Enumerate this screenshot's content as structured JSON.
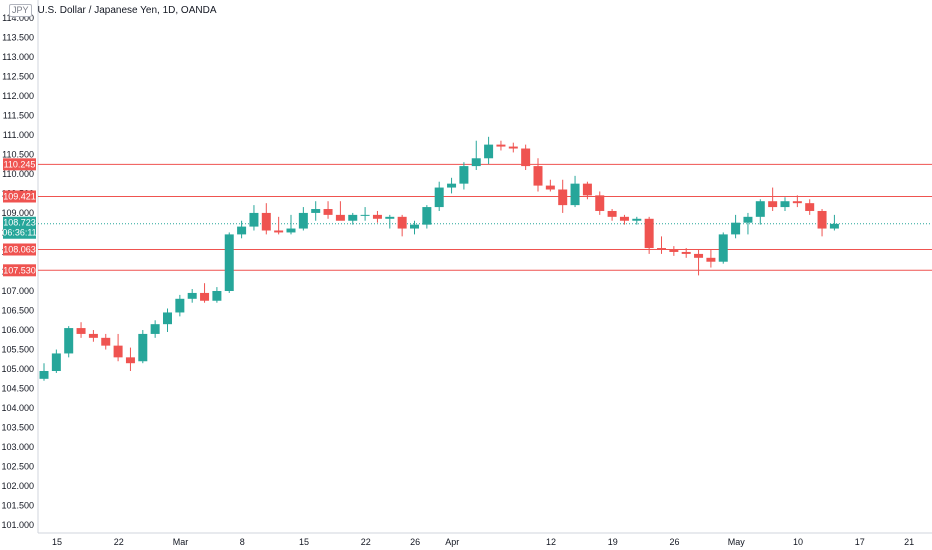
{
  "header": {
    "currency": "JPY",
    "title": "U.S. Dollar / Japanese Yen, 1D, OANDA"
  },
  "colors": {
    "up": "#26a69a",
    "down": "#ef5350",
    "level": "#ef5350",
    "current": "#26a69a",
    "axis_line": "#d1d4dc",
    "text": "#131722"
  },
  "chart_data": {
    "type": "candlestick",
    "title": "U.S. Dollar / Japanese Yen, 1D, OANDA",
    "ylim": [
      100.8,
      114.25
    ],
    "y_ticks": [
      "101.000",
      "101.500",
      "102.000",
      "102.500",
      "103.000",
      "103.500",
      "104.000",
      "104.500",
      "105.000",
      "105.500",
      "106.000",
      "106.500",
      "107.000",
      "107.500",
      "108.000",
      "108.500",
      "109.000",
      "109.500",
      "110.000",
      "110.500",
      "111.000",
      "111.500",
      "112.000",
      "112.500",
      "113.000",
      "113.500",
      "114.000"
    ],
    "x_ticks": [
      {
        "label": "15",
        "slot": 0
      },
      {
        "label": "22",
        "slot": 5
      },
      {
        "label": "Mar",
        "slot": 10
      },
      {
        "label": "8",
        "slot": 15
      },
      {
        "label": "15",
        "slot": 20
      },
      {
        "label": "22",
        "slot": 25
      },
      {
        "label": "26",
        "slot": 29
      },
      {
        "label": "Apr",
        "slot": 32
      },
      {
        "label": "12",
        "slot": 40
      },
      {
        "label": "19",
        "slot": 45
      },
      {
        "label": "26",
        "slot": 50
      },
      {
        "label": "May",
        "slot": 55
      },
      {
        "label": "10",
        "slot": 60
      },
      {
        "label": "17",
        "slot": 65
      },
      {
        "label": "21",
        "slot": 69
      }
    ],
    "candles": [
      {
        "o": 104.75,
        "h": 105.15,
        "l": 104.7,
        "c": 104.95
      },
      {
        "o": 104.95,
        "h": 105.5,
        "l": 104.9,
        "c": 105.4
      },
      {
        "o": 105.4,
        "h": 106.1,
        "l": 105.3,
        "c": 106.05
      },
      {
        "o": 106.05,
        "h": 106.2,
        "l": 105.8,
        "c": 105.9
      },
      {
        "o": 105.9,
        "h": 106.0,
        "l": 105.7,
        "c": 105.8
      },
      {
        "o": 105.8,
        "h": 105.9,
        "l": 105.5,
        "c": 105.6
      },
      {
        "o": 105.6,
        "h": 105.9,
        "l": 105.2,
        "c": 105.3
      },
      {
        "o": 105.3,
        "h": 105.55,
        "l": 104.95,
        "c": 105.15
      },
      {
        "o": 105.2,
        "h": 106.0,
        "l": 105.15,
        "c": 105.9
      },
      {
        "o": 105.9,
        "h": 106.25,
        "l": 105.8,
        "c": 106.15
      },
      {
        "o": 106.15,
        "h": 106.55,
        "l": 105.95,
        "c": 106.45
      },
      {
        "o": 106.45,
        "h": 106.9,
        "l": 106.35,
        "c": 106.8
      },
      {
        "o": 106.8,
        "h": 107.05,
        "l": 106.7,
        "c": 106.95
      },
      {
        "o": 106.95,
        "h": 107.2,
        "l": 106.7,
        "c": 106.75
      },
      {
        "o": 106.75,
        "h": 107.1,
        "l": 106.7,
        "c": 107.0
      },
      {
        "o": 107.0,
        "h": 108.5,
        "l": 106.95,
        "c": 108.45
      },
      {
        "o": 108.45,
        "h": 108.8,
        "l": 108.35,
        "c": 108.65
      },
      {
        "o": 108.65,
        "h": 109.2,
        "l": 108.55,
        "c": 109.0
      },
      {
        "o": 109.0,
        "h": 109.25,
        "l": 108.45,
        "c": 108.55
      },
      {
        "o": 108.55,
        "h": 108.9,
        "l": 108.45,
        "c": 108.5
      },
      {
        "o": 108.5,
        "h": 108.95,
        "l": 108.45,
        "c": 108.6
      },
      {
        "o": 108.6,
        "h": 109.15,
        "l": 108.55,
        "c": 109.0
      },
      {
        "o": 109.0,
        "h": 109.3,
        "l": 108.8,
        "c": 109.1
      },
      {
        "o": 109.1,
        "h": 109.3,
        "l": 108.85,
        "c": 108.95
      },
      {
        "o": 108.95,
        "h": 109.3,
        "l": 108.85,
        "c": 108.8
      },
      {
        "o": 108.8,
        "h": 109.0,
        "l": 108.7,
        "c": 108.95
      },
      {
        "o": 108.95,
        "h": 109.15,
        "l": 108.8,
        "c": 108.95
      },
      {
        "o": 108.95,
        "h": 109.05,
        "l": 108.75,
        "c": 108.85
      },
      {
        "o": 108.85,
        "h": 108.95,
        "l": 108.6,
        "c": 108.9
      },
      {
        "o": 108.9,
        "h": 108.95,
        "l": 108.4,
        "c": 108.6
      },
      {
        "o": 108.6,
        "h": 108.8,
        "l": 108.45,
        "c": 108.7
      },
      {
        "o": 108.7,
        "h": 109.2,
        "l": 108.6,
        "c": 109.15
      },
      {
        "o": 109.15,
        "h": 109.8,
        "l": 109.05,
        "c": 109.65
      },
      {
        "o": 109.65,
        "h": 109.9,
        "l": 109.5,
        "c": 109.75
      },
      {
        "o": 109.75,
        "h": 110.3,
        "l": 109.6,
        "c": 110.2
      },
      {
        "o": 110.2,
        "h": 110.85,
        "l": 110.1,
        "c": 110.4
      },
      {
        "o": 110.4,
        "h": 110.95,
        "l": 110.25,
        "c": 110.75
      },
      {
        "o": 110.75,
        "h": 110.85,
        "l": 110.6,
        "c": 110.7
      },
      {
        "o": 110.7,
        "h": 110.8,
        "l": 110.55,
        "c": 110.65
      },
      {
        "o": 110.65,
        "h": 110.75,
        "l": 110.1,
        "c": 110.2
      },
      {
        "o": 110.2,
        "h": 110.4,
        "l": 109.55,
        "c": 109.7
      },
      {
        "o": 109.7,
        "h": 109.85,
        "l": 109.55,
        "c": 109.6
      },
      {
        "o": 109.6,
        "h": 109.85,
        "l": 109.0,
        "c": 109.2
      },
      {
        "o": 109.2,
        "h": 109.95,
        "l": 109.15,
        "c": 109.75
      },
      {
        "o": 109.75,
        "h": 109.8,
        "l": 109.35,
        "c": 109.45
      },
      {
        "o": 109.45,
        "h": 109.55,
        "l": 108.95,
        "c": 109.05
      },
      {
        "o": 109.05,
        "h": 109.1,
        "l": 108.8,
        "c": 108.9
      },
      {
        "o": 108.9,
        "h": 108.95,
        "l": 108.7,
        "c": 108.8
      },
      {
        "o": 108.8,
        "h": 108.9,
        "l": 108.7,
        "c": 108.85
      },
      {
        "o": 108.85,
        "h": 108.9,
        "l": 107.95,
        "c": 108.1
      },
      {
        "o": 108.1,
        "h": 108.4,
        "l": 107.95,
        "c": 108.05
      },
      {
        "o": 108.05,
        "h": 108.15,
        "l": 107.9,
        "c": 108.0
      },
      {
        "o": 108.0,
        "h": 108.1,
        "l": 107.85,
        "c": 107.95
      },
      {
        "o": 107.95,
        "h": 108.05,
        "l": 107.4,
        "c": 107.85
      },
      {
        "o": 107.85,
        "h": 108.05,
        "l": 107.6,
        "c": 107.75
      },
      {
        "o": 107.75,
        "h": 108.5,
        "l": 107.7,
        "c": 108.45
      },
      {
        "o": 108.45,
        "h": 108.95,
        "l": 108.35,
        "c": 108.75
      },
      {
        "o": 108.75,
        "h": 109.0,
        "l": 108.45,
        "c": 108.9
      },
      {
        "o": 108.9,
        "h": 109.35,
        "l": 108.7,
        "c": 109.3
      },
      {
        "o": 109.3,
        "h": 109.65,
        "l": 109.05,
        "c": 109.15
      },
      {
        "o": 109.15,
        "h": 109.4,
        "l": 109.05,
        "c": 109.3
      },
      {
        "o": 109.3,
        "h": 109.45,
        "l": 109.15,
        "c": 109.25
      },
      {
        "o": 109.25,
        "h": 109.35,
        "l": 108.95,
        "c": 109.05
      },
      {
        "o": 109.05,
        "h": 109.1,
        "l": 108.4,
        "c": 108.6
      },
      {
        "o": 108.6,
        "h": 108.95,
        "l": 108.55,
        "c": 108.72
      }
    ],
    "horizontal_levels": [
      {
        "value": 110.245,
        "label": "110.245"
      },
      {
        "value": 109.421,
        "label": "109.421"
      },
      {
        "value": 108.063,
        "label": "108.063"
      },
      {
        "value": 107.53,
        "label": "107.530"
      }
    ],
    "current_price": {
      "value": 108.723,
      "label": "108.723",
      "countdown": "06:36:11"
    }
  }
}
